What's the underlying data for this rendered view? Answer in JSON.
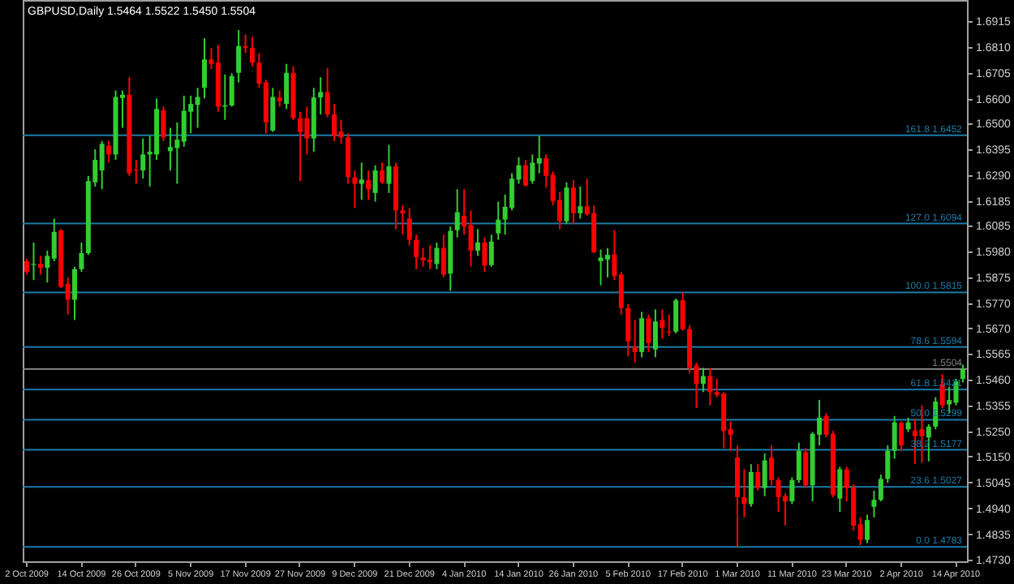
{
  "chart_data": {
    "type": "candlestick",
    "title": "GBPUSD,Daily  1.5464 1.5522 1.5450 1.5504",
    "categories": [
      "2 Oct 2009",
      null,
      null,
      null,
      null,
      null,
      null,
      null,
      "14 Oct 2009",
      null,
      null,
      null,
      null,
      null,
      null,
      null,
      "26 Oct 2009",
      null,
      null,
      null,
      null,
      null,
      null,
      null,
      "5 Nov 2009",
      null,
      null,
      null,
      null,
      null,
      null,
      null,
      "17 Nov 2009",
      null,
      null,
      null,
      null,
      null,
      null,
      null,
      "27 Nov 2009",
      null,
      null,
      null,
      null,
      null,
      null,
      null,
      "9 Dec 2009",
      null,
      null,
      null,
      null,
      null,
      null,
      null,
      "21 Dec 2009",
      null,
      null,
      null,
      null,
      null,
      null,
      null,
      "4 Jan 2010",
      null,
      null,
      null,
      null,
      null,
      null,
      null,
      "14 Jan 2010",
      null,
      null,
      null,
      null,
      null,
      null,
      null,
      "26 Jan 2010",
      null,
      null,
      null,
      null,
      null,
      null,
      null,
      "5 Feb 2010",
      null,
      null,
      null,
      null,
      null,
      null,
      null,
      "17 Feb 2010",
      null,
      null,
      null,
      null,
      null,
      null,
      null,
      "1 Mar 2010",
      null,
      null,
      null,
      null,
      null,
      null,
      null,
      "11 Mar 2010",
      null,
      null,
      null,
      null,
      null,
      null,
      null,
      "23 Mar 2010",
      null,
      null,
      null,
      null,
      null,
      null,
      null,
      "2 Apr 2010",
      null,
      null,
      null,
      null,
      null,
      null,
      null,
      "14 Apr 2010",
      null
    ],
    "ohlc": [
      [
        1.5941,
        1.5952,
        1.5887,
        1.5898
      ],
      [
        1.5926,
        1.6017,
        1.5865,
        1.593
      ],
      [
        1.593,
        1.5963,
        1.5887,
        1.5915
      ],
      [
        1.5915,
        1.5984,
        1.5855,
        1.5963
      ],
      [
        1.5952,
        1.6114,
        1.5941,
        1.606
      ],
      [
        1.6067,
        1.6071,
        1.5833,
        1.5837
      ],
      [
        1.585,
        1.5876,
        1.5725,
        1.5785
      ],
      [
        1.5785,
        1.5919,
        1.5703,
        1.5909
      ],
      [
        1.5909,
        1.6017,
        1.5898,
        1.5974
      ],
      [
        1.5974,
        1.6287,
        1.5967,
        1.6266
      ],
      [
        1.6261,
        1.6395,
        1.6244,
        1.6352
      ],
      [
        1.6309,
        1.6428,
        1.6233,
        1.6417
      ],
      [
        1.641,
        1.6428,
        1.6341,
        1.6374
      ],
      [
        1.6374,
        1.6633,
        1.6352,
        1.6607
      ],
      [
        1.6603,
        1.6633,
        1.6482,
        1.6616
      ],
      [
        1.6616,
        1.6687,
        1.6287,
        1.6298
      ],
      [
        1.6313,
        1.6352,
        1.6255,
        1.6309
      ],
      [
        1.6309,
        1.6439,
        1.6276,
        1.6374
      ],
      [
        1.6374,
        1.6449,
        1.6244,
        1.6385
      ],
      [
        1.6374,
        1.6601,
        1.6352,
        1.6558
      ],
      [
        1.6553,
        1.6568,
        1.6428,
        1.6443
      ],
      [
        1.6387,
        1.6482,
        1.6309,
        1.6404
      ],
      [
        1.64,
        1.6504,
        1.6255,
        1.6434
      ],
      [
        1.6426,
        1.6612,
        1.6406,
        1.6551
      ],
      [
        1.6547,
        1.6612,
        1.646,
        1.6579
      ],
      [
        1.6575,
        1.6644,
        1.6482,
        1.6607
      ],
      [
        1.6644,
        1.6845,
        1.6601,
        1.6759
      ],
      [
        1.6759,
        1.6806,
        1.672,
        1.6741
      ],
      [
        1.6746,
        1.6817,
        1.6547,
        1.6568
      ],
      [
        1.6568,
        1.6698,
        1.6514,
        1.6573
      ],
      [
        1.6573,
        1.6703,
        1.6568,
        1.6692
      ],
      [
        1.6705,
        1.6878,
        1.6666,
        1.6813
      ],
      [
        1.6813,
        1.686,
        1.6785,
        1.6806
      ],
      [
        1.6806,
        1.685,
        1.6731,
        1.6746
      ],
      [
        1.6746,
        1.6785,
        1.6644,
        1.6661
      ],
      [
        1.6666,
        1.6677,
        1.646,
        1.6504
      ],
      [
        1.6471,
        1.6644,
        1.6465,
        1.6607
      ],
      [
        1.6605,
        1.6633,
        1.6568,
        1.659
      ],
      [
        1.6579,
        1.6741,
        1.6558,
        1.6705
      ],
      [
        1.6705,
        1.6731,
        1.6514,
        1.6521
      ],
      [
        1.6521,
        1.6547,
        1.6266,
        1.6465
      ],
      [
        1.6521,
        1.6568,
        1.6374,
        1.6439
      ],
      [
        1.6439,
        1.6644,
        1.6385,
        1.6605
      ],
      [
        1.6605,
        1.6687,
        1.6536,
        1.6627
      ],
      [
        1.6627,
        1.6724,
        1.6525,
        1.6536
      ],
      [
        1.6536,
        1.6579,
        1.6428,
        1.6449
      ],
      [
        1.6467,
        1.6514,
        1.6417,
        1.6443
      ],
      [
        1.6443,
        1.646,
        1.6255,
        1.6283
      ],
      [
        1.6281,
        1.6309,
        1.6157,
        1.6255
      ],
      [
        1.6255,
        1.6341,
        1.619,
        1.6272
      ],
      [
        1.627,
        1.6309,
        1.619,
        1.6233
      ],
      [
        1.6218,
        1.633,
        1.6183,
        1.6309
      ],
      [
        1.6309,
        1.6341,
        1.6255,
        1.6261
      ],
      [
        1.6255,
        1.6413,
        1.6218,
        1.6326
      ],
      [
        1.6326,
        1.6341,
        1.6071,
        1.6147
      ],
      [
        1.6147,
        1.6168,
        1.6049,
        1.6136
      ],
      [
        1.6114,
        1.6157,
        1.6006,
        1.6028
      ],
      [
        1.6028,
        1.6049,
        1.5909,
        1.5958
      ],
      [
        1.5956,
        1.5995,
        1.5919,
        1.5945
      ],
      [
        1.5948,
        1.6006,
        1.5909,
        1.5937
      ],
      [
        1.593,
        1.6017,
        1.5909,
        1.5995
      ],
      [
        1.5995,
        1.6049,
        1.5876,
        1.5887
      ],
      [
        1.5891,
        1.6082,
        1.5822,
        1.6064
      ],
      [
        1.6067,
        1.6233,
        1.6038,
        1.614
      ],
      [
        1.6125,
        1.6233,
        1.6049,
        1.6082
      ],
      [
        1.6088,
        1.6147,
        1.5919,
        1.5984
      ],
      [
        1.5984,
        1.6071,
        1.5963,
        1.6017
      ],
      [
        1.6017,
        1.6038,
        1.5898,
        1.5924
      ],
      [
        1.5926,
        1.6049,
        1.5919,
        1.6021
      ],
      [
        1.6054,
        1.6183,
        1.6028,
        1.611
      ],
      [
        1.611,
        1.6212,
        1.6049,
        1.6162
      ],
      [
        1.6157,
        1.6298,
        1.6147,
        1.6276
      ],
      [
        1.6272,
        1.6363,
        1.6255,
        1.633
      ],
      [
        1.633,
        1.6352,
        1.6244,
        1.6248
      ],
      [
        1.6266,
        1.6374,
        1.6255,
        1.6341
      ],
      [
        1.6337,
        1.6449,
        1.6298,
        1.6359
      ],
      [
        1.6359,
        1.6374,
        1.624,
        1.6287
      ],
      [
        1.6292,
        1.6305,
        1.6168,
        1.6186
      ],
      [
        1.619,
        1.6222,
        1.6071,
        1.6103
      ],
      [
        1.6103,
        1.6261,
        1.6093,
        1.624
      ],
      [
        1.624,
        1.627,
        1.6093,
        1.6136
      ],
      [
        1.6136,
        1.6244,
        1.6114,
        1.6164
      ],
      [
        1.6164,
        1.6276,
        1.6125,
        1.6131
      ],
      [
        1.6136,
        1.6168,
        1.5974,
        1.5978
      ],
      [
        1.5941,
        1.5989,
        1.5844,
        1.5956
      ],
      [
        1.5948,
        1.5995,
        1.5876,
        1.5967
      ],
      [
        1.5969,
        1.6067,
        1.5865,
        1.5881
      ],
      [
        1.5887,
        1.5898,
        1.5725,
        1.5751
      ],
      [
        1.5751,
        1.5768,
        1.5556,
        1.5617
      ],
      [
        1.5595,
        1.5703,
        1.553,
        1.5573
      ],
      [
        1.5573,
        1.5736,
        1.5552,
        1.571
      ],
      [
        1.571,
        1.5725,
        1.5573,
        1.561
      ],
      [
        1.5584,
        1.5746,
        1.5552,
        1.5697
      ],
      [
        1.5703,
        1.5746,
        1.5627,
        1.5671
      ],
      [
        1.5656,
        1.5725,
        1.5638,
        1.5653
      ],
      [
        1.5656,
        1.579,
        1.5649,
        1.5783
      ],
      [
        1.5783,
        1.5815,
        1.566,
        1.5666
      ],
      [
        1.5666,
        1.5682,
        1.5487,
        1.5509
      ],
      [
        1.5519,
        1.553,
        1.5346,
        1.5444
      ],
      [
        1.5444,
        1.5509,
        1.5411,
        1.5476
      ],
      [
        1.5476,
        1.5509,
        1.5357,
        1.5411
      ],
      [
        1.5411,
        1.5465,
        1.539,
        1.54
      ],
      [
        1.5405,
        1.5411,
        1.5184,
        1.5253
      ],
      [
        1.526,
        1.5292,
        1.5173,
        1.5238
      ],
      [
        1.5145,
        1.5195,
        1.4783,
        1.4985
      ],
      [
        1.4985,
        1.5098,
        1.4903,
        1.4957
      ],
      [
        1.4957,
        1.5119,
        1.4946,
        1.5087
      ],
      [
        1.5087,
        1.5119,
        1.5011,
        1.5022
      ],
      [
        1.5022,
        1.5162,
        1.4989,
        1.5134
      ],
      [
        1.5145,
        1.5195,
        1.5033,
        1.5054
      ],
      [
        1.5054,
        1.5065,
        1.4925,
        1.4985
      ],
      [
        1.4989,
        1.5,
        1.487,
        1.4968
      ],
      [
        1.4968,
        1.5065,
        1.4957,
        1.5054
      ],
      [
        1.5054,
        1.5206,
        1.5043,
        1.5173
      ],
      [
        1.5167,
        1.5184,
        1.5022,
        1.5033
      ],
      [
        1.5033,
        1.5249,
        1.4968,
        1.5242
      ],
      [
        1.5238,
        1.5379,
        1.5195,
        1.5307
      ],
      [
        1.5314,
        1.5325,
        1.5227,
        1.5238
      ],
      [
        1.5242,
        1.5253,
        1.4985,
        1.4994
      ],
      [
        1.4979,
        1.5108,
        1.4925,
        1.5098
      ],
      [
        1.5098,
        1.5108,
        1.4968,
        1.5022
      ],
      [
        1.5026,
        1.5037,
        1.4849,
        1.487
      ],
      [
        1.4875,
        1.4903,
        1.479,
        1.4812
      ],
      [
        1.4812,
        1.4914,
        1.4799,
        1.4892
      ],
      [
        1.4946,
        1.5011,
        1.4903,
        1.4974
      ],
      [
        1.4974,
        1.5076,
        1.4968,
        1.5059
      ],
      [
        1.5059,
        1.5195,
        1.5043,
        1.5173
      ],
      [
        1.5173,
        1.5314,
        1.5141,
        1.5288
      ],
      [
        1.5286,
        1.5292,
        1.5173,
        1.5195
      ],
      [
        1.526,
        1.5307,
        1.5249,
        1.5288
      ],
      [
        1.5255,
        1.5303,
        1.5119,
        1.5232
      ],
      [
        1.526,
        1.5357,
        1.5124,
        1.5232
      ],
      [
        1.5227,
        1.5281,
        1.513,
        1.5271
      ],
      [
        1.5271,
        1.539,
        1.526,
        1.5372
      ],
      [
        1.5444,
        1.5483,
        1.5346,
        1.5357
      ],
      [
        1.5361,
        1.5433,
        1.5325,
        1.5379
      ],
      [
        1.5368,
        1.5465,
        1.5357,
        1.5454
      ],
      [
        1.5464,
        1.5522,
        1.545,
        1.5504
      ]
    ],
    "colors": [
      "#ff0000",
      "#32cd32",
      "#ff0000",
      "#32cd32",
      "#32cd32",
      "#ff0000",
      "#ff0000",
      "#32cd32",
      "#32cd32",
      "#32cd32",
      "#32cd32",
      "#32cd32",
      "#ff0000",
      "#32cd32",
      "#32cd32",
      "#ff0000",
      "#ff0000",
      "#32cd32",
      "#32cd32",
      "#32cd32",
      "#ff0000",
      "#32cd32",
      "#32cd32",
      "#32cd32",
      "#32cd32",
      "#32cd32",
      "#32cd32",
      "#ff0000",
      "#ff0000",
      "#32cd32",
      "#32cd32",
      "#32cd32",
      "#ff0000",
      "#ff0000",
      "#ff0000",
      "#ff0000",
      "#32cd32",
      "#ff0000",
      "#32cd32",
      "#ff0000",
      "#ff0000",
      "#ff0000",
      "#32cd32",
      "#32cd32",
      "#ff0000",
      "#ff0000",
      "#ff0000",
      "#ff0000",
      "#ff0000",
      "#32cd32",
      "#ff0000",
      "#32cd32",
      "#ff0000",
      "#32cd32",
      "#ff0000",
      "#ff0000",
      "#ff0000",
      "#ff0000",
      "#ff0000",
      "#ff0000",
      "#32cd32",
      "#ff0000",
      "#32cd32",
      "#32cd32",
      "#ff0000",
      "#ff0000",
      "#32cd32",
      "#ff0000",
      "#32cd32",
      "#32cd32",
      "#32cd32",
      "#32cd32",
      "#32cd32",
      "#ff0000",
      "#32cd32",
      "#32cd32",
      "#ff0000",
      "#ff0000",
      "#ff0000",
      "#32cd32",
      "#ff0000",
      "#32cd32",
      "#ff0000",
      "#ff0000",
      "#32cd32",
      "#32cd32",
      "#ff0000",
      "#ff0000",
      "#ff0000",
      "#ff0000",
      "#32cd32",
      "#ff0000",
      "#32cd32",
      "#ff0000",
      "#ff0000",
      "#32cd32",
      "#ff0000",
      "#ff0000",
      "#ff0000",
      "#32cd32",
      "#ff0000",
      "#ff0000",
      "#ff0000",
      "#ff0000",
      "#ff0000",
      "#ff0000",
      "#32cd32",
      "#ff0000",
      "#32cd32",
      "#ff0000",
      "#ff0000",
      "#ff0000",
      "#32cd32",
      "#32cd32",
      "#ff0000",
      "#32cd32",
      "#32cd32",
      "#ff0000",
      "#ff0000",
      "#32cd32",
      "#ff0000",
      "#ff0000",
      "#ff0000",
      "#32cd32",
      "#32cd32",
      "#32cd32",
      "#32cd32",
      "#32cd32",
      "#ff0000",
      "#32cd32",
      "#ff0000",
      "#ff0000",
      "#32cd32",
      "#32cd32",
      "#ff0000",
      "#32cd32",
      "#32cd32",
      "#32cd32"
    ],
    "ylim": [
      1.4725,
      1.7
    ],
    "yticks": [
      1.6915,
      {
        "value": 1.681,
        "label": "1.6810"
      },
      1.6705,
      {
        "value": 1.66,
        "label": "1.6600"
      },
      {
        "value": 1.65,
        "label": "1.6500"
      },
      1.6395,
      {
        "value": 1.629,
        "label": "1.6290"
      },
      1.6185,
      1.6085,
      {
        "value": 1.598,
        "label": "1.5980"
      },
      1.5875,
      {
        "value": 1.577,
        "label": "1.5770"
      },
      {
        "value": 1.567,
        "label": "1.5670"
      },
      1.5565,
      {
        "value": 1.546,
        "label": "1.5460"
      },
      1.5355,
      {
        "value": 1.525,
        "label": "1.5250"
      },
      {
        "value": 1.515,
        "label": "1.5150"
      },
      1.5045,
      {
        "value": 1.494,
        "label": "1.4940"
      },
      1.4835,
      {
        "value": 1.473,
        "label": "1.4730"
      }
    ],
    "ref_lines": [
      {
        "axis": "y",
        "value": 1.6452,
        "label": "161.8 1.6452",
        "color": "#1c7ca6"
      },
      {
        "axis": "y",
        "value": 1.6094,
        "label": "127.0 1.6094",
        "color": "#1c7ca6"
      },
      {
        "axis": "y",
        "value": 1.5815,
        "label": "100.0 1.5815",
        "color": "#1c7ca6"
      },
      {
        "axis": "y",
        "value": 1.5594,
        "label": "78.6 1.5594",
        "color": "#1c7ca6"
      },
      {
        "axis": "y",
        "value": 1.5421,
        "label": "61.8 1.5421",
        "color": "#1c7ca6"
      },
      {
        "axis": "y",
        "value": 1.5299,
        "label": "50.0 1.5299",
        "color": "#1c7ca6"
      },
      {
        "axis": "y",
        "value": 1.5177,
        "label": "38.2 1.5177",
        "color": "#1c7ca6"
      },
      {
        "axis": "y",
        "value": 1.5027,
        "label": "23.6 1.5027",
        "color": "#1c7ca6"
      },
      {
        "axis": "y",
        "value": 1.4783,
        "label": "0.0 1.4783",
        "color": "#1c7ca6"
      },
      {
        "axis": "y",
        "value": 1.5504,
        "label": "1.5504",
        "color": "#808080"
      }
    ],
    "grid": false
  }
}
